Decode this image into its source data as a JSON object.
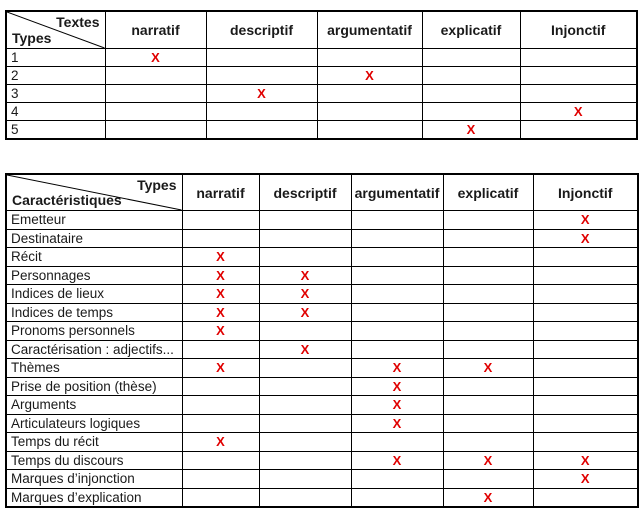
{
  "mark_color": "#e00000",
  "border_color": "#000000",
  "table1": {
    "corner": {
      "top_label": "Textes",
      "bottom_label": "Types"
    },
    "mark_symbol": "X",
    "columns": [
      "narratif",
      "descriptif",
      "argumentatif",
      "explicatif",
      "Injonctif"
    ],
    "rows": [
      {
        "label": "1",
        "marks": [
          1,
          0,
          0,
          0,
          0
        ]
      },
      {
        "label": "2",
        "marks": [
          0,
          0,
          1,
          0,
          0
        ]
      },
      {
        "label": "3",
        "marks": [
          0,
          1,
          0,
          0,
          0
        ]
      },
      {
        "label": "4",
        "marks": [
          0,
          0,
          0,
          0,
          1
        ]
      },
      {
        "label": "5",
        "marks": [
          0,
          0,
          0,
          1,
          0
        ]
      }
    ]
  },
  "table2": {
    "corner": {
      "top_label": "Types",
      "bottom_label": "Caractéristiques"
    },
    "mark_symbol": "X",
    "columns": [
      "narratif",
      "descriptif",
      "argumentatif",
      "explicatif",
      "Injonctif"
    ],
    "rows": [
      {
        "label": "Emetteur",
        "marks": [
          0,
          0,
          0,
          0,
          1
        ]
      },
      {
        "label": "Destinataire",
        "marks": [
          0,
          0,
          0,
          0,
          1
        ]
      },
      {
        "label": "Récit",
        "marks": [
          1,
          0,
          0,
          0,
          0
        ]
      },
      {
        "label": "Personnages",
        "marks": [
          1,
          1,
          0,
          0,
          0
        ]
      },
      {
        "label": "Indices de lieux",
        "marks": [
          1,
          1,
          0,
          0,
          0
        ]
      },
      {
        "label": "Indices de temps",
        "marks": [
          1,
          1,
          0,
          0,
          0
        ]
      },
      {
        "label": "Pronoms personnels",
        "marks": [
          1,
          0,
          0,
          0,
          0
        ]
      },
      {
        "label": "Caractérisation : adjectifs...",
        "marks": [
          0,
          1,
          0,
          0,
          0
        ]
      },
      {
        "label": "Thèmes",
        "marks": [
          1,
          0,
          1,
          1,
          0
        ]
      },
      {
        "label": "Prise de position (thèse)",
        "marks": [
          0,
          0,
          1,
          0,
          0
        ]
      },
      {
        "label": "Arguments",
        "marks": [
          0,
          0,
          1,
          0,
          0
        ]
      },
      {
        "label": "Articulateurs logiques",
        "marks": [
          0,
          0,
          1,
          0,
          0
        ]
      },
      {
        "label": "Temps du récit",
        "marks": [
          1,
          0,
          0,
          0,
          0
        ]
      },
      {
        "label": "Temps du discours",
        "marks": [
          0,
          0,
          1,
          1,
          1
        ]
      },
      {
        "label": "Marques d’injonction",
        "marks": [
          0,
          0,
          0,
          0,
          1
        ]
      },
      {
        "label": "Marques d’explication",
        "marks": [
          0,
          0,
          0,
          1,
          0
        ]
      }
    ]
  }
}
